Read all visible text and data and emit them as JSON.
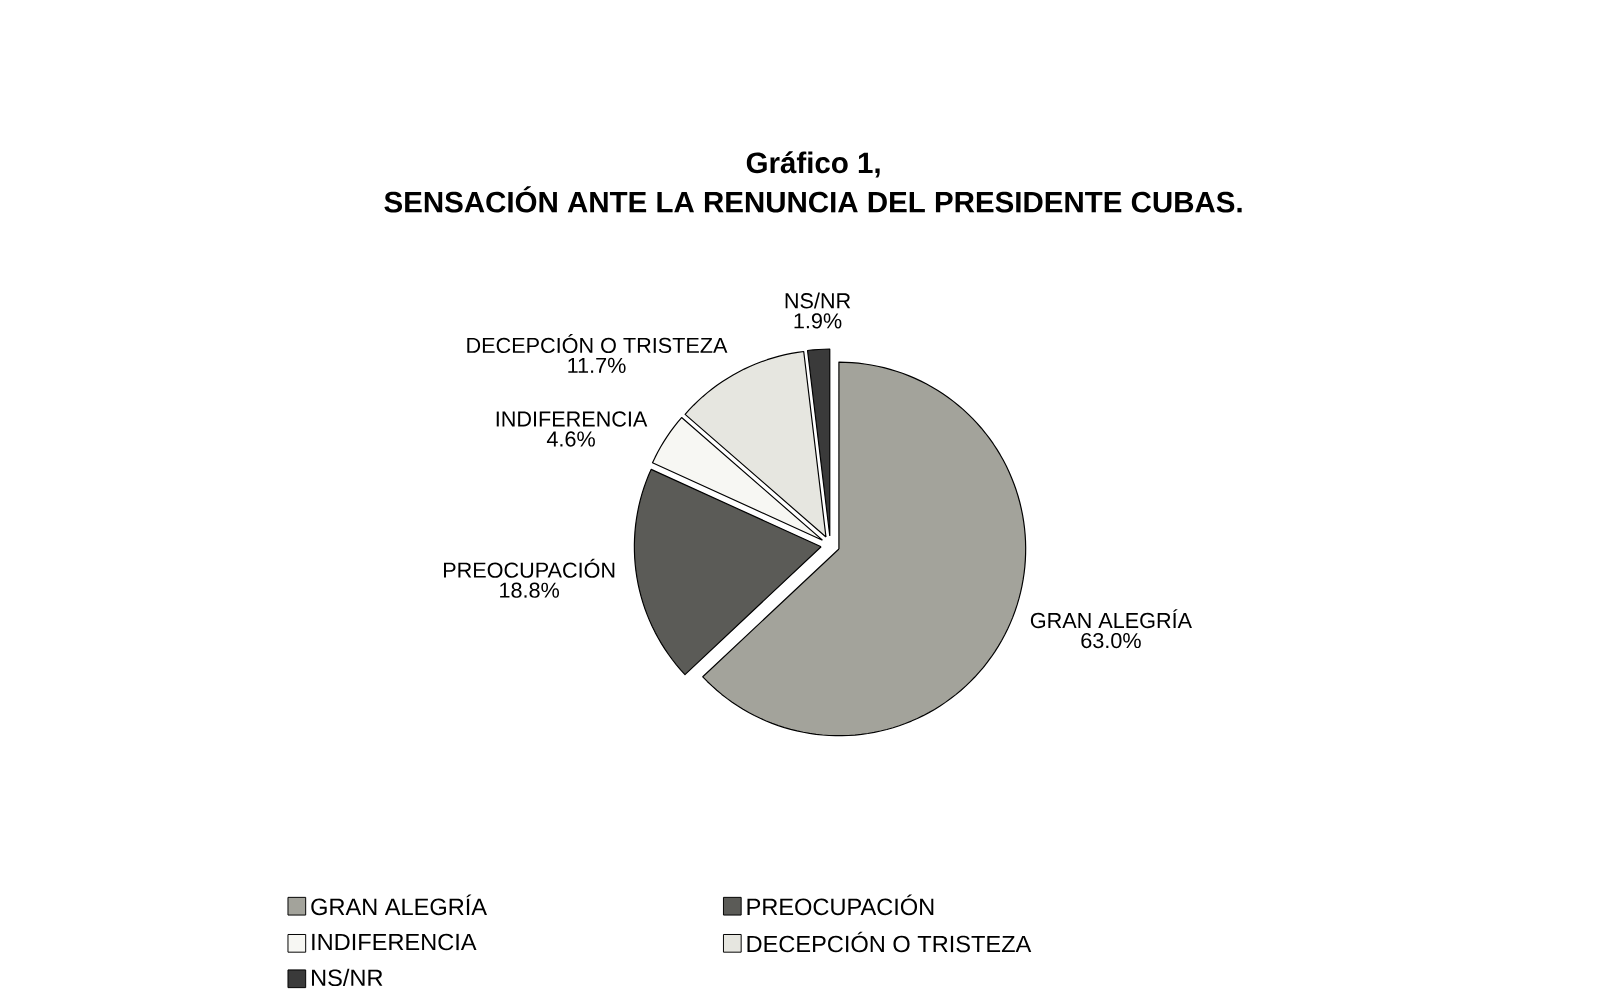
{
  "chart_data": {
    "type": "pie",
    "title": "Gráfico 1,",
    "subtitle": "SENSACIÓN ANTE LA RENUNCIA DEL PRESIDENTE CUBAS.",
    "categories": [
      "GRAN ALEGRÍA",
      "PREOCUPACIÓN",
      "INDIFERENCIA",
      "DECEPCIÓN O TRISTEZA",
      "NS/NR"
    ],
    "values": [
      63.0,
      18.8,
      4.6,
      11.7,
      1.9
    ],
    "value_labels": [
      "63.0%",
      "18.8%",
      "4.6%",
      "11.7%",
      "1.9%"
    ],
    "colors": [
      "#a3a39b",
      "#5b5b57",
      "#f7f7f3",
      "#e6e6e0",
      "#3a3a3a"
    ],
    "legend": "bottom"
  }
}
